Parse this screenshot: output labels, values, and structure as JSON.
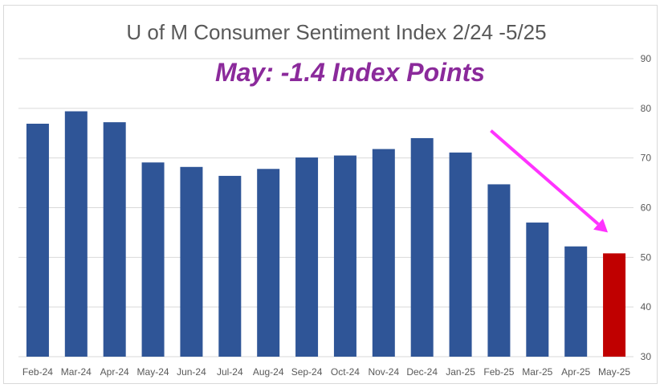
{
  "chart_data": {
    "type": "bar",
    "title": "U of M Consumer Sentiment Index  2/24 -5/25",
    "annotation": "May: -1.4 Index Points",
    "categories": [
      "Feb-24",
      "Mar-24",
      "Apr-24",
      "May-24",
      "Jun-24",
      "Jul-24",
      "Aug-24",
      "Sep-24",
      "Oct-24",
      "Nov-24",
      "Dec-24",
      "Jan-25",
      "Feb-25",
      "Mar-25",
      "Apr-25",
      "May-25"
    ],
    "values": [
      76.9,
      79.4,
      77.2,
      69.1,
      68.2,
      66.4,
      67.8,
      70.1,
      70.5,
      71.8,
      74.0,
      71.1,
      64.7,
      57.0,
      52.2,
      50.8
    ],
    "ylim": [
      30,
      90
    ],
    "yticks": [
      30,
      40,
      50,
      60,
      70,
      80,
      90
    ],
    "y_axis_side": "right",
    "grid": true,
    "colors": {
      "bar": "#2f5597",
      "highlight_bar": "#c00000",
      "highlight_category": "May-25",
      "arrow": "#ff33ff",
      "annotation": "#8b2a9b"
    },
    "arrow": {
      "from": {
        "category": "Feb-25",
        "value": 75.5
      },
      "to": {
        "category": "May-25",
        "value": 55.0
      }
    }
  }
}
